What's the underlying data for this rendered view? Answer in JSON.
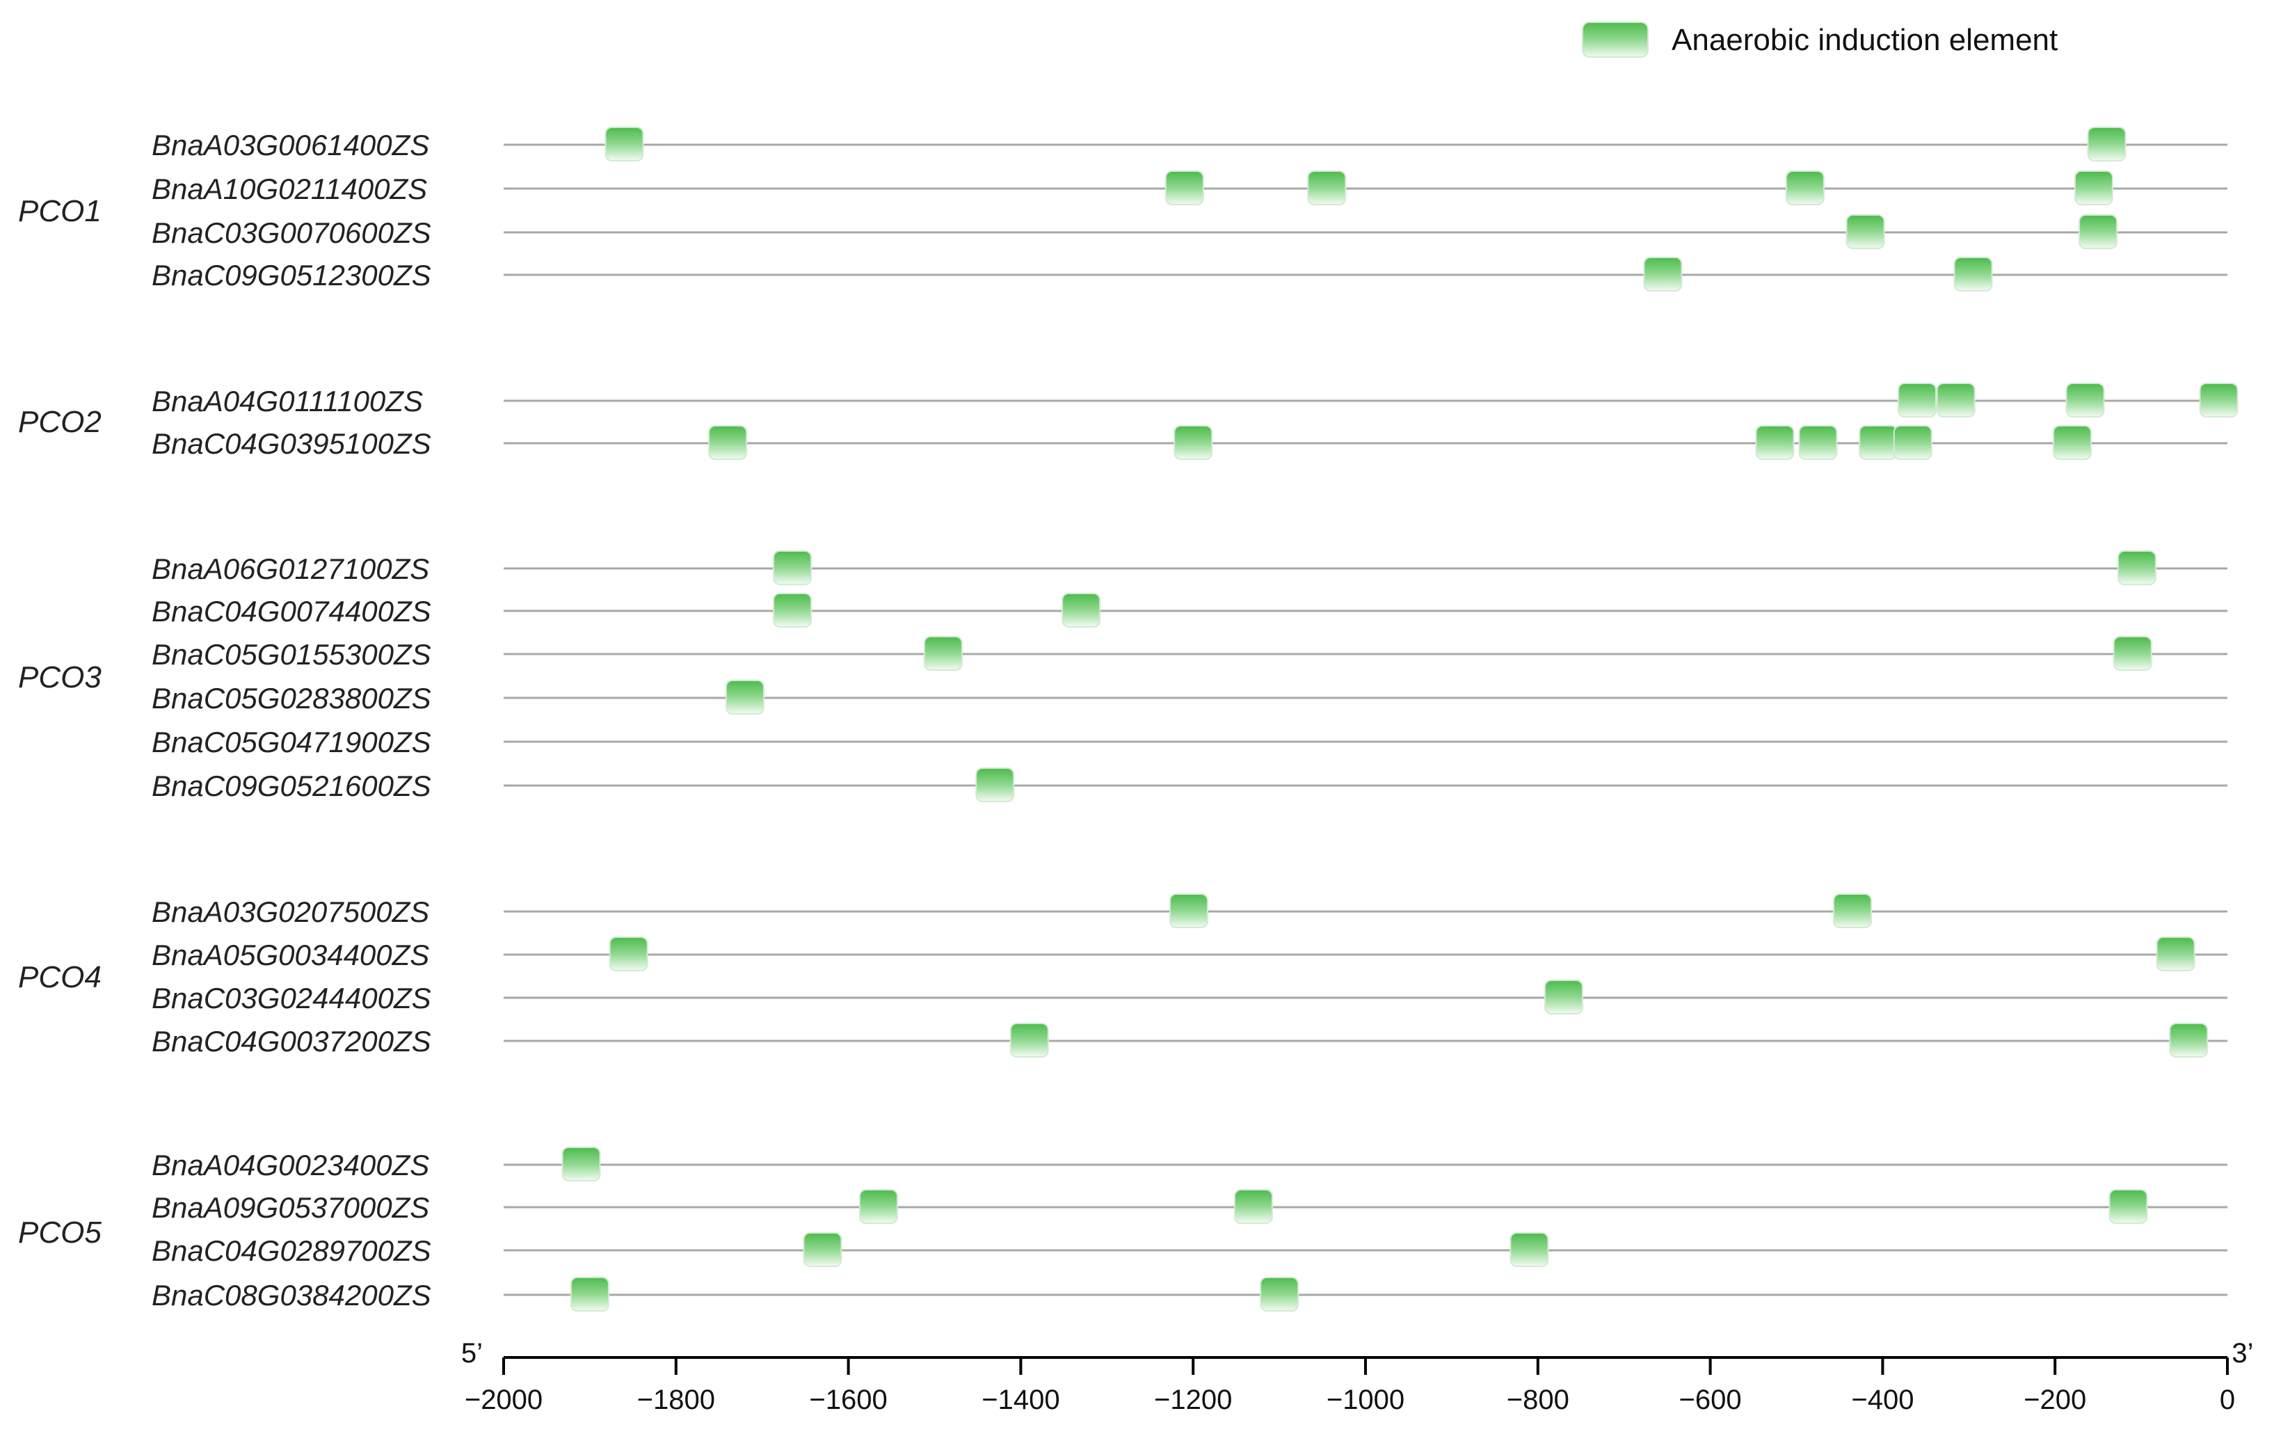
{
  "legend": {
    "label": "Anaerobic induction element",
    "color": "#5cc45c"
  },
  "axis": {
    "min": -2000,
    "max": 0,
    "ticks": [
      -2000,
      -1800,
      -1600,
      -1400,
      -1200,
      -1000,
      -800,
      -600,
      -400,
      -200,
      0
    ],
    "tick_labels": [
      "−2000",
      "−1800",
      "−1600",
      "−1400",
      "−1200",
      "−1000",
      "−800",
      "−600",
      "−400",
      "−200",
      "0"
    ],
    "start_label": "5’",
    "end_label": "3’"
  },
  "groups": [
    {
      "name": "PCO1",
      "genes": [
        {
          "name": "BnaA03G0061400ZS",
          "elements": [
            -1860,
            -140
          ]
        },
        {
          "name": "BnaA10G0211400ZS",
          "elements": [
            -1210,
            -1045,
            -490,
            -155
          ]
        },
        {
          "name": "BnaC03G0070600ZS",
          "elements": [
            -420,
            -150
          ]
        },
        {
          "name": "BnaC09G0512300ZS",
          "elements": [
            -655,
            -295
          ]
        }
      ]
    },
    {
      "name": "PCO2",
      "genes": [
        {
          "name": "BnaA04G0111100ZS",
          "elements": [
            -360,
            -315,
            -165,
            -10
          ]
        },
        {
          "name": "BnaC04G0395100ZS",
          "elements": [
            -1740,
            -1200,
            -525,
            -475,
            -405,
            -365,
            -180
          ]
        }
      ]
    },
    {
      "name": "PCO3",
      "genes": [
        {
          "name": "BnaA06G0127100ZS",
          "elements": [
            -1665,
            -105
          ]
        },
        {
          "name": "BnaC04G0074400ZS",
          "elements": [
            -1665,
            -1330
          ]
        },
        {
          "name": "BnaC05G0155300ZS",
          "elements": [
            -1490,
            -110
          ]
        },
        {
          "name": "BnaC05G0283800ZS",
          "elements": [
            -1720
          ]
        },
        {
          "name": "BnaC05G0471900ZS",
          "elements": []
        },
        {
          "name": "BnaC09G0521600ZS",
          "elements": [
            -1430
          ]
        }
      ]
    },
    {
      "name": "PCO4",
      "genes": [
        {
          "name": "BnaA03G0207500ZS",
          "elements": [
            -1205,
            -435
          ]
        },
        {
          "name": "BnaA05G0034400ZS",
          "elements": [
            -1855,
            -60
          ]
        },
        {
          "name": "BnaC03G0244400ZS",
          "elements": [
            -770
          ]
        },
        {
          "name": "BnaC04G0037200ZS",
          "elements": [
            -1390,
            -45
          ]
        }
      ]
    },
    {
      "name": "PCO5",
      "genes": [
        {
          "name": "BnaA04G0023400ZS",
          "elements": [
            -1910
          ]
        },
        {
          "name": "BnaA09G0537000ZS",
          "elements": [
            -1565,
            -1130,
            -115
          ]
        },
        {
          "name": "BnaC04G0289700ZS",
          "elements": [
            -1630,
            -810
          ]
        },
        {
          "name": "BnaC08G0384200ZS",
          "elements": [
            -1900,
            -1100
          ]
        }
      ]
    }
  ]
}
